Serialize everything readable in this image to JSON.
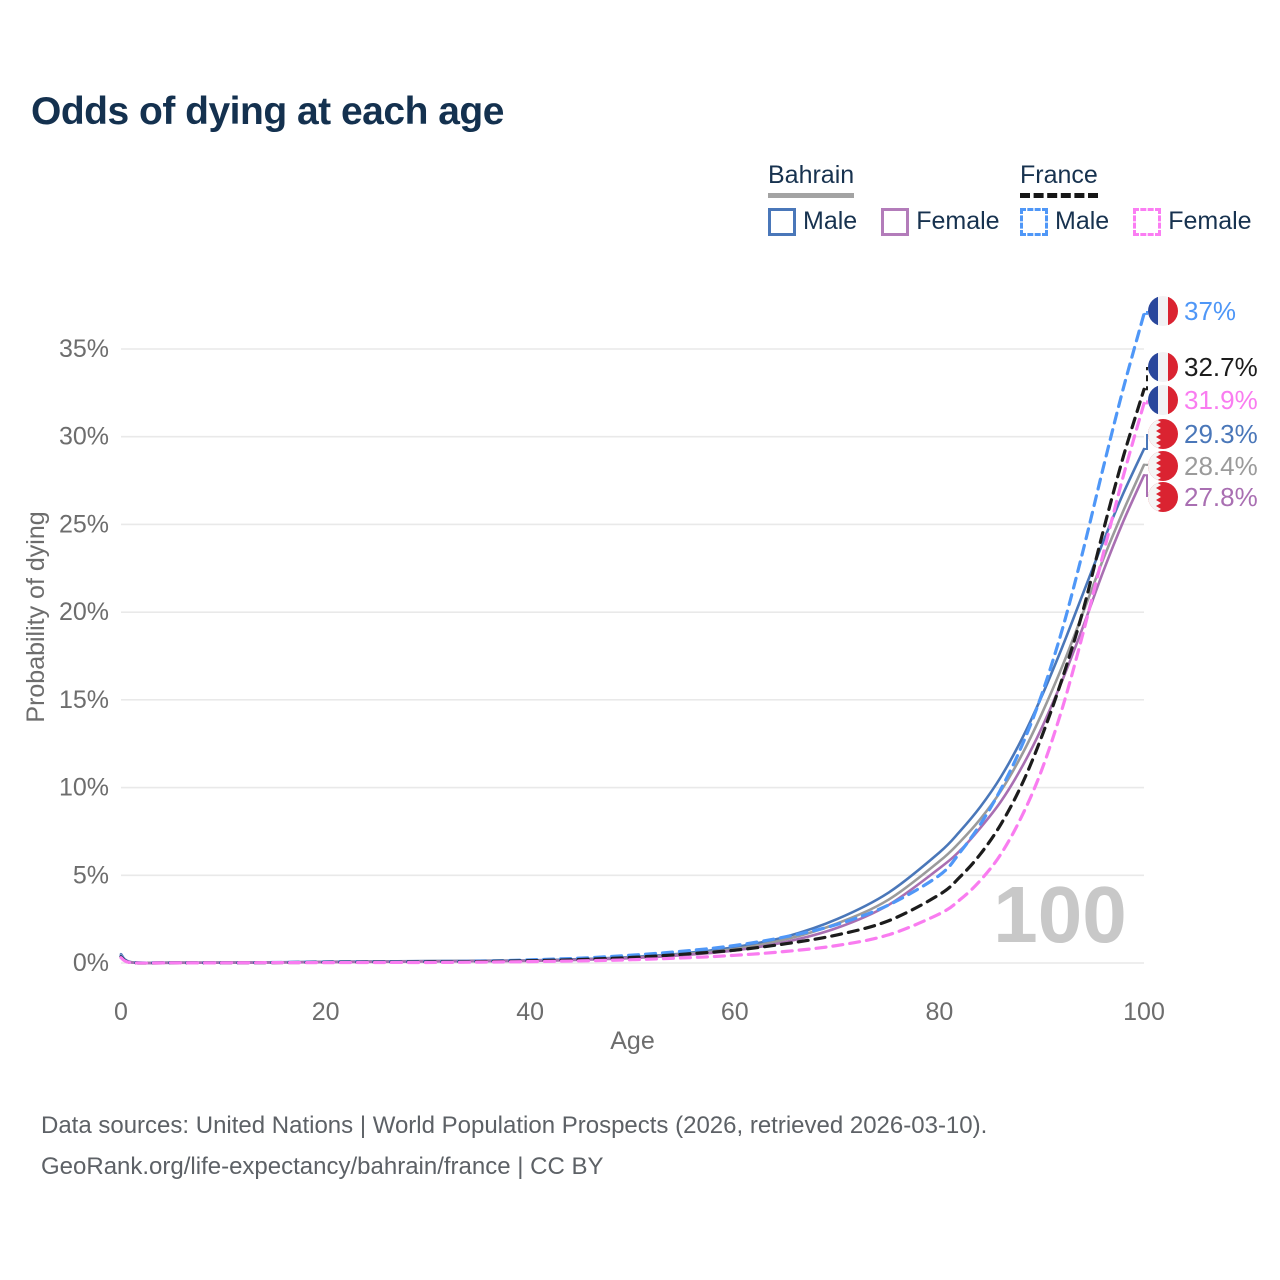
{
  "header": {
    "title": "Odds of dying at each age"
  },
  "legend": {
    "groups": [
      {
        "label": "Bahrain",
        "line_style": "solid",
        "underline_color": "#a3a3a3",
        "items": [
          {
            "label": "Male",
            "color": "#4a77b9",
            "dashed": false
          },
          {
            "label": "Female",
            "color": "#b37cba",
            "dashed": false
          }
        ]
      },
      {
        "label": "France",
        "line_style": "dashed",
        "underline_color": "#161616",
        "items": [
          {
            "label": "Male",
            "color": "#4f97f7",
            "dashed": true
          },
          {
            "label": "Female",
            "color": "#fb7df3",
            "dashed": true
          }
        ]
      }
    ]
  },
  "chart_data": {
    "type": "line",
    "title": "Odds of dying at each age",
    "xlabel": "Age",
    "ylabel": "Probability of dying",
    "xlim": [
      0,
      100
    ],
    "ylim": [
      0,
      35
    ],
    "xticks": [
      0,
      20,
      40,
      60,
      80,
      100
    ],
    "yticks": [
      {
        "value": 0,
        "label": "0%"
      },
      {
        "value": 5,
        "label": "5%"
      },
      {
        "value": 10,
        "label": "10%"
      },
      {
        "value": 15,
        "label": "15%"
      },
      {
        "value": 20,
        "label": "20%"
      },
      {
        "value": 25,
        "label": "25%"
      },
      {
        "value": 30,
        "label": "30%"
      },
      {
        "value": 35,
        "label": "35%"
      }
    ],
    "grid": "horizontal",
    "legend_position": "top-right",
    "age_watermark": "100",
    "x": [
      0,
      1,
      5,
      10,
      15,
      20,
      25,
      30,
      35,
      40,
      45,
      50,
      55,
      60,
      65,
      70,
      75,
      80,
      82,
      84,
      86,
      88,
      90,
      92,
      94,
      96,
      98,
      100
    ],
    "series": [
      {
        "name": "Bahrain Male",
        "country": "Bahrain",
        "sex": "male",
        "color": "#4a77b9",
        "dashed": false,
        "end_label": "29.3%",
        "values": [
          0.5,
          0.05,
          0.02,
          0.02,
          0.04,
          0.07,
          0.09,
          0.11,
          0.13,
          0.15,
          0.22,
          0.35,
          0.55,
          0.9,
          1.5,
          2.5,
          4.0,
          6.3,
          7.5,
          8.9,
          10.6,
          12.7,
          15.2,
          18.0,
          21.0,
          24.0,
          26.8,
          29.3
        ]
      },
      {
        "name": "Bahrain Total",
        "country": "Bahrain",
        "sex": "both",
        "color": "#9b9b9b",
        "dashed": false,
        "end_label": "28.4%",
        "values": [
          0.45,
          0.04,
          0.02,
          0.02,
          0.03,
          0.06,
          0.08,
          0.1,
          0.12,
          0.14,
          0.2,
          0.31,
          0.5,
          0.8,
          1.35,
          2.25,
          3.6,
          5.8,
          6.9,
          8.2,
          9.8,
          11.8,
          14.2,
          16.9,
          19.9,
          23.0,
          25.8,
          28.4
        ]
      },
      {
        "name": "Bahrain Female",
        "country": "Bahrain",
        "sex": "female",
        "color": "#a96fb2",
        "dashed": false,
        "end_label": "27.8%",
        "values": [
          0.4,
          0.03,
          0.01,
          0.02,
          0.03,
          0.05,
          0.07,
          0.09,
          0.1,
          0.12,
          0.18,
          0.28,
          0.45,
          0.72,
          1.2,
          2.0,
          3.3,
          5.4,
          6.4,
          7.7,
          9.2,
          11.1,
          13.4,
          16.1,
          19.1,
          22.3,
          25.2,
          27.8
        ]
      },
      {
        "name": "France Male",
        "country": "France",
        "sex": "male",
        "color": "#4f97f7",
        "dashed": true,
        "end_label": "37%",
        "values": [
          0.4,
          0.04,
          0.01,
          0.01,
          0.03,
          0.06,
          0.07,
          0.08,
          0.1,
          0.18,
          0.28,
          0.45,
          0.68,
          1.0,
          1.5,
          2.2,
          3.3,
          5.0,
          6.3,
          7.9,
          9.9,
          12.3,
          15.3,
          19.0,
          23.4,
          28.2,
          32.8,
          37.0
        ]
      },
      {
        "name": "France Total",
        "country": "France",
        "sex": "both",
        "color": "#1c1c1c",
        "dashed": true,
        "end_label": "32.7%",
        "values": [
          0.35,
          0.03,
          0.01,
          0.01,
          0.02,
          0.04,
          0.05,
          0.06,
          0.08,
          0.13,
          0.2,
          0.32,
          0.5,
          0.73,
          1.1,
          1.6,
          2.4,
          3.9,
          4.9,
          6.2,
          7.9,
          10.1,
          12.9,
          16.2,
          20.0,
          24.6,
          28.9,
          32.7
        ]
      },
      {
        "name": "France Female",
        "country": "France",
        "sex": "female",
        "color": "#f97cf0",
        "dashed": true,
        "end_label": "31.9%",
        "values": [
          0.3,
          0.02,
          0.01,
          0.01,
          0.02,
          0.02,
          0.03,
          0.03,
          0.05,
          0.08,
          0.12,
          0.19,
          0.29,
          0.44,
          0.66,
          1.0,
          1.6,
          2.8,
          3.6,
          4.7,
          6.2,
          8.3,
          11.0,
          14.5,
          18.7,
          23.3,
          27.8,
          31.9
        ]
      }
    ],
    "flag_colors": {
      "france_blue": "#2a479c",
      "france_white": "#f2f2f4",
      "france_red": "#da2331",
      "bahrain_red": "#da2331",
      "bahrain_white": "#f5f5f5"
    }
  },
  "style_colors": {
    "title": "#14314f",
    "axis_text": "#6d6d6d",
    "grid": "#e9e9e9",
    "watermark": "#c8c8c8",
    "footer": "#5d6166"
  },
  "footer": {
    "line1": "Data sources: United Nations | World Population Prospects (2026, retrieved 2026-03-10).",
    "line2": "GeoRank.org/life-expectancy/bahrain/france | CC BY"
  }
}
